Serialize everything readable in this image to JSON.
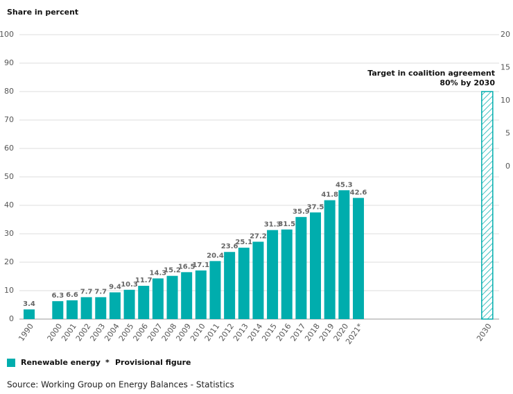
{
  "chart_data": {
    "type": "bar",
    "y_label": "Share in percent",
    "categories": [
      "1990",
      null,
      "2000",
      "2001",
      "2002",
      "2003",
      "2004",
      "2005",
      "2006",
      "2007",
      "2008",
      "2009",
      "2010",
      "2011",
      "2012",
      "2013",
      "2014",
      "2015",
      "2016",
      "2017",
      "2018",
      "2019",
      "2020",
      "2021*",
      null,
      null,
      null,
      null,
      null,
      null,
      null,
      null,
      "2030"
    ],
    "series": [
      {
        "name": "Renewable energy",
        "color": "#00adad",
        "values": [
          3.4,
          null,
          6.3,
          6.6,
          7.7,
          7.7,
          9.4,
          10.3,
          11.7,
          14.3,
          15.2,
          16.5,
          17.1,
          20.4,
          23.6,
          25.1,
          27.2,
          31.3,
          31.5,
          35.9,
          37.5,
          41.8,
          45.3,
          42.6,
          null,
          null,
          null,
          null,
          null,
          null,
          null,
          null,
          80
        ]
      }
    ],
    "hatched_last": true,
    "target_annotation": [
      "Target in coalition agreement",
      "80% by 2030"
    ],
    "ylim": [
      0,
      100
    ],
    "yticks": [
      0,
      10,
      20,
      30,
      40,
      50,
      60,
      70,
      80,
      90,
      100
    ],
    "y2lim": [
      -23.16,
      20
    ],
    "y2ticks": [
      0,
      5,
      10,
      15,
      20
    ],
    "grid": true,
    "note": [
      "*",
      "Provisional figure"
    ],
    "source": "Source: Working Group on Energy Balances - Statistics"
  }
}
